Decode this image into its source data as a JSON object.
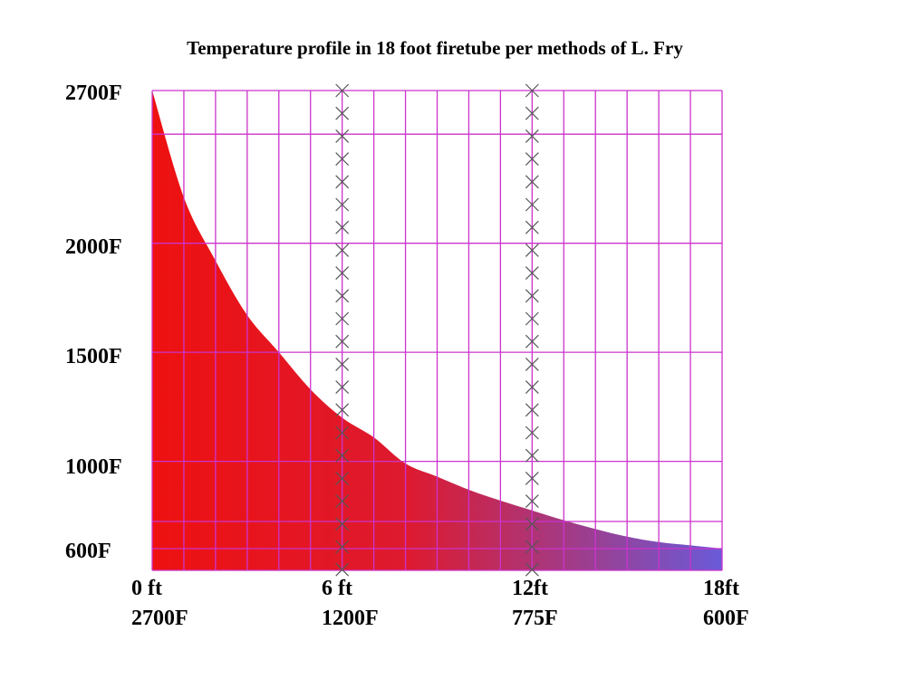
{
  "chart_data": {
    "type": "area",
    "title": "Temperature profile in 18 foot firetube per methods of L. Fry",
    "xlabel": "",
    "ylabel": "",
    "xlim": [
      0,
      18
    ],
    "ylim": [
      500,
      2700
    ],
    "y_tick_labels": [
      {
        "value": 2700,
        "label": "2700F"
      },
      {
        "value": 2000,
        "label": "2000F"
      },
      {
        "value": 1500,
        "label": "1500F"
      },
      {
        "value": 1000,
        "label": "1000F"
      },
      {
        "value": 600,
        "label": "600F"
      }
    ],
    "x_tick_labels": [
      {
        "value": 0,
        "label": "0 ft",
        "sublabel": "2700F"
      },
      {
        "value": 6,
        "label": "6 ft",
        "sublabel": "1200F"
      },
      {
        "value": 12,
        "label": "12ft",
        "sublabel": "775F"
      },
      {
        "value": 18,
        "label": "18ft",
        "sublabel": "600F"
      }
    ],
    "grid": true,
    "grid_color": "#cc33cc",
    "fill_gradient": [
      "#ee1111",
      "#dd1a30",
      "#6a5ad8"
    ],
    "marker_color": "#555555",
    "marked_positions": [
      6,
      12
    ],
    "series": [
      {
        "x": [
          0,
          1,
          2,
          3,
          4,
          5,
          6,
          7,
          8,
          9,
          10,
          11,
          12,
          13,
          14,
          15,
          16,
          17,
          18
        ],
        "y": [
          2700,
          2210,
          1920,
          1670,
          1500,
          1330,
          1200,
          1110,
          990,
          930,
          870,
          820,
          775,
          730,
          690,
          655,
          630,
          615,
          600
        ]
      }
    ]
  }
}
